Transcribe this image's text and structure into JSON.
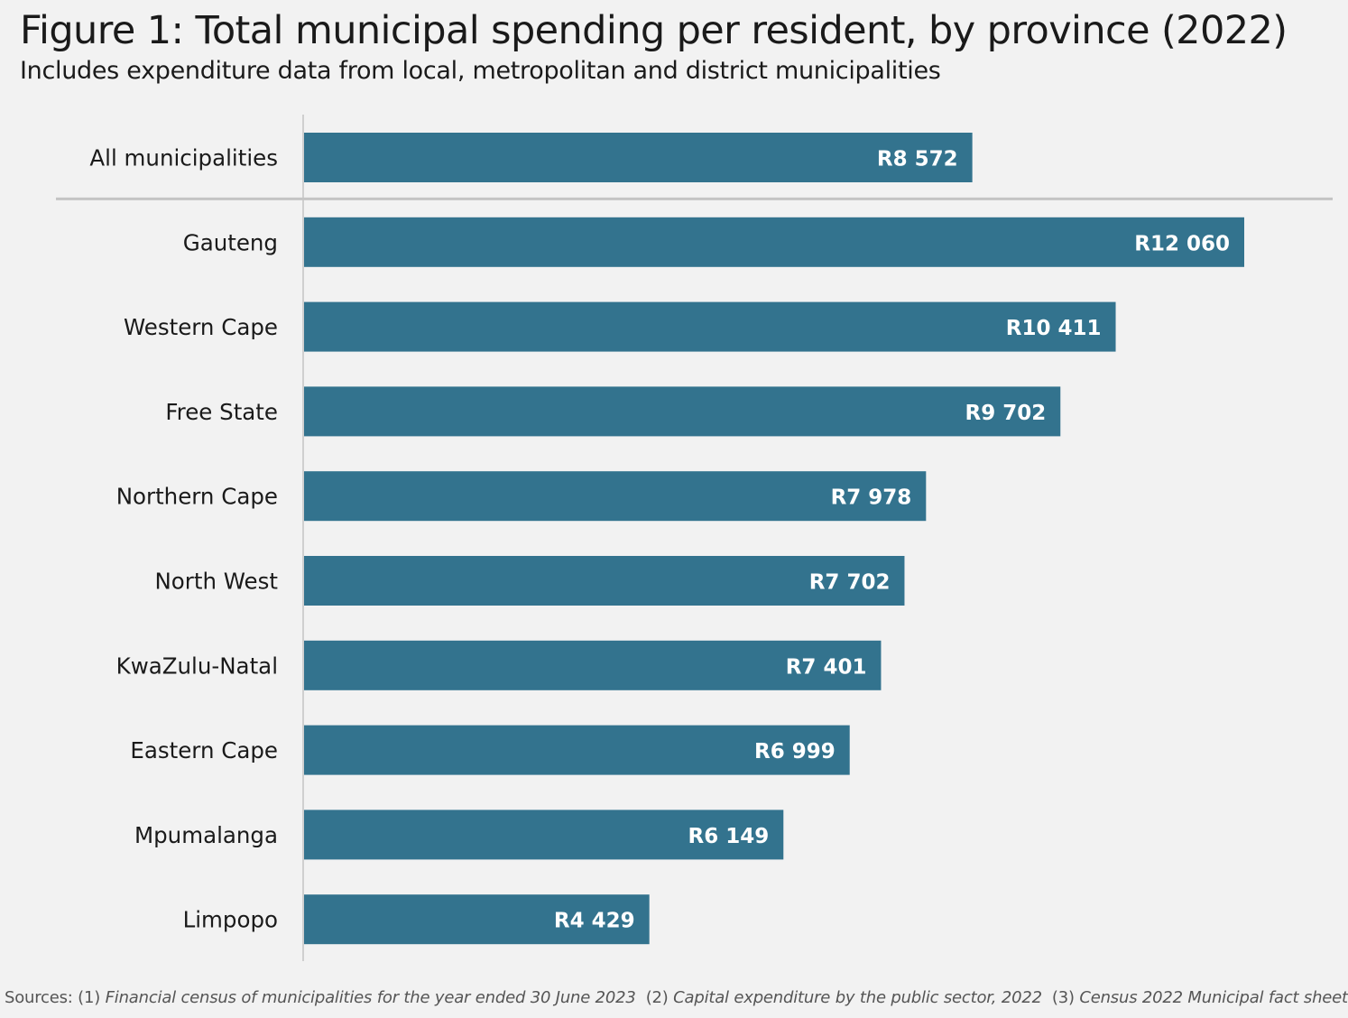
{
  "title": "Figure 1: Total municipal spending per resident, by province (2022)",
  "subtitle": "Includes expenditure data from local, metropolitan and district municipalities",
  "sources": {
    "lead": "Sources: (1)",
    "s1": "Financial census of municipalities for the year ended 30 June 2023",
    "n2": "(2)",
    "s2": "Capital expenditure by the public sector, 2022",
    "n3": "(3)",
    "s3": "Census 2022 Municipal fact sheet"
  },
  "colors": {
    "bar": "#33738e",
    "bar_label": "#ffffff",
    "axis": "#cfcfcf",
    "separator": "#c4c4c4",
    "background": "#f2f2f2"
  },
  "chart_data": {
    "type": "bar",
    "orientation": "horizontal",
    "title": "Figure 1: Total municipal spending per resident, by province (2022)",
    "subtitle": "Includes expenditure data from local, metropolitan and district municipalities",
    "xlabel": "",
    "ylabel": "",
    "xlim": [
      0,
      12060
    ],
    "grid": false,
    "categories": [
      "All municipalities",
      "Gauteng",
      "Western Cape",
      "Free State",
      "Northern Cape",
      "North West",
      "KwaZulu-Natal",
      "Eastern Cape",
      "Mpumalanga",
      "Limpopo"
    ],
    "values": [
      8572,
      12060,
      10411,
      9702,
      7978,
      7702,
      7401,
      6999,
      6149,
      4429
    ],
    "data_labels": [
      "R8 572",
      "R12 060",
      "R10 411",
      "R9 702",
      "R7 978",
      "R7 702",
      "R7 401",
      "R6 999",
      "R6 149",
      "R4 429"
    ],
    "unit": "Rand per resident",
    "separator_after_index": 0
  }
}
